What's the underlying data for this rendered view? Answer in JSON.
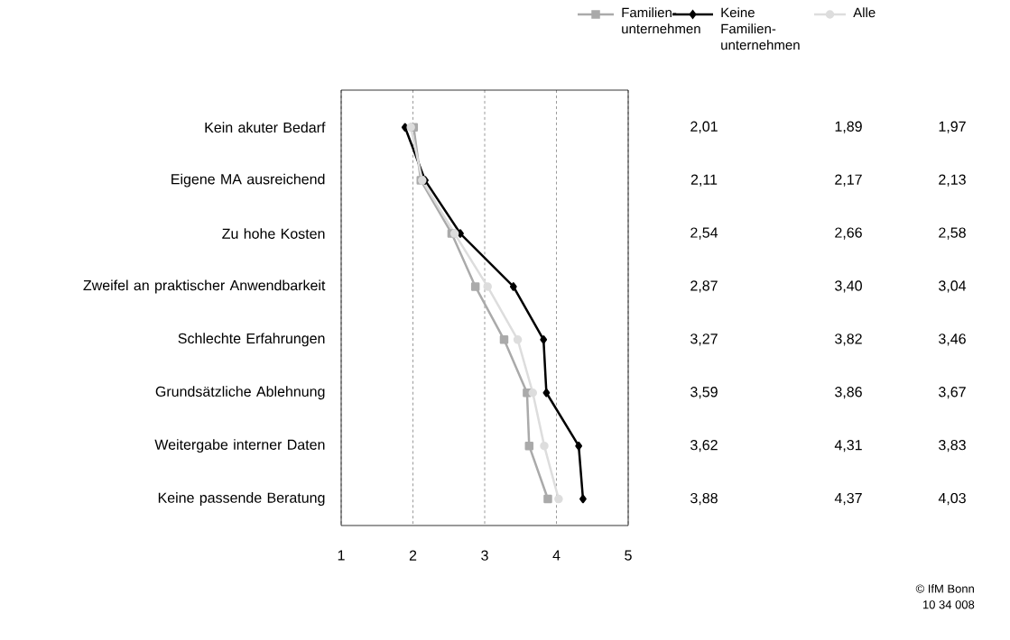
{
  "chart_data": {
    "type": "line",
    "orientation": "horizontal",
    "categories": [
      "Kein akuter Bedarf",
      "Eigene MA ausreichend",
      "Zu hohe Kosten",
      "Zweifel an praktischer Anwendbarkeit",
      "Schlechte Erfahrungen",
      "Grundsätzliche Ablehnung",
      "Weitergabe interner Daten",
      "Keine passende Beratung"
    ],
    "series": [
      {
        "name": "Familien-unternehmen",
        "color": "#aaaaaa",
        "marker": "square",
        "values": [
          2.01,
          2.11,
          2.54,
          2.87,
          3.27,
          3.59,
          3.62,
          3.88
        ],
        "value_labels": [
          "2,01",
          "2,11",
          "2,54",
          "2,87",
          "3,27",
          "3,59",
          "3,62",
          "3,88"
        ]
      },
      {
        "name": "Keine Familien-unternehmen",
        "color": "#000000",
        "marker": "diamond",
        "values": [
          1.89,
          2.17,
          2.66,
          3.4,
          3.82,
          3.86,
          4.31,
          4.37
        ],
        "value_labels": [
          "1,89",
          "2,17",
          "2,66",
          "3,40",
          "3,82",
          "3,86",
          "4,31",
          "4,37"
        ]
      },
      {
        "name": "Alle",
        "color": "#dddddd",
        "marker": "circle",
        "values": [
          1.97,
          2.13,
          2.58,
          3.04,
          3.46,
          3.67,
          3.83,
          4.03
        ],
        "value_labels": [
          "1,97",
          "2,13",
          "2,58",
          "3,04",
          "3,46",
          "3,67",
          "3,83",
          "4,03"
        ]
      }
    ],
    "xlim": [
      1,
      5
    ],
    "xticks": [
      1,
      2,
      3,
      4,
      5
    ],
    "grid": "x",
    "legend": "top right",
    "annotations": [
      "© IfM Bonn",
      "10 34 008"
    ]
  }
}
